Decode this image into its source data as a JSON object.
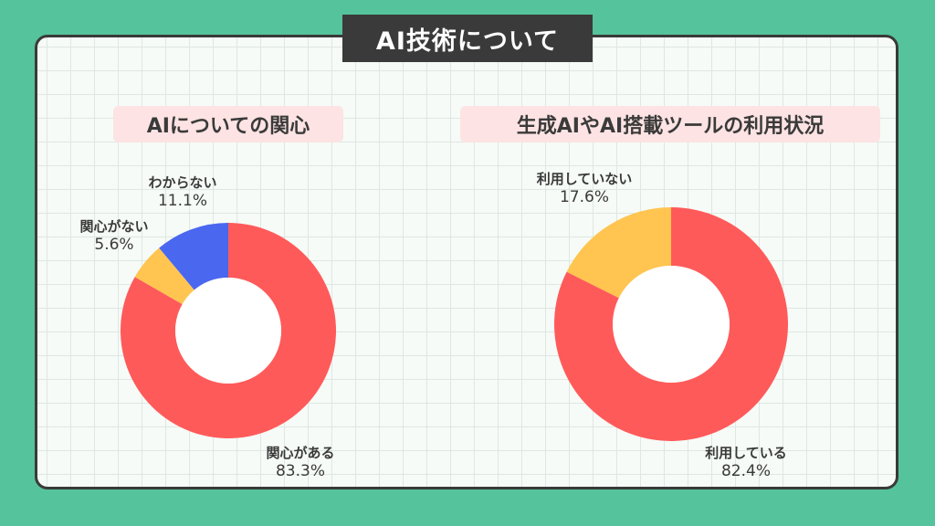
{
  "title": "AI技術について",
  "chart_data": [
    {
      "type": "pie",
      "title": "AIについての関心",
      "categories": [
        "関心がある",
        "関心がない",
        "わからない"
      ],
      "values": [
        83.3,
        5.6,
        11.1
      ],
      "value_labels": [
        "83.3%",
        "5.6%",
        "11.1%"
      ],
      "colors": [
        "#ff5a5a",
        "#ffc550",
        "#4a67f0"
      ]
    },
    {
      "type": "pie",
      "title": "生成AIやAI搭載ツールの利用状況",
      "categories": [
        "利用している",
        "利用していない"
      ],
      "values": [
        82.4,
        17.6
      ],
      "value_labels": [
        "82.4%",
        "17.6%"
      ],
      "colors": [
        "#ff5a5a",
        "#ffc550"
      ]
    }
  ]
}
